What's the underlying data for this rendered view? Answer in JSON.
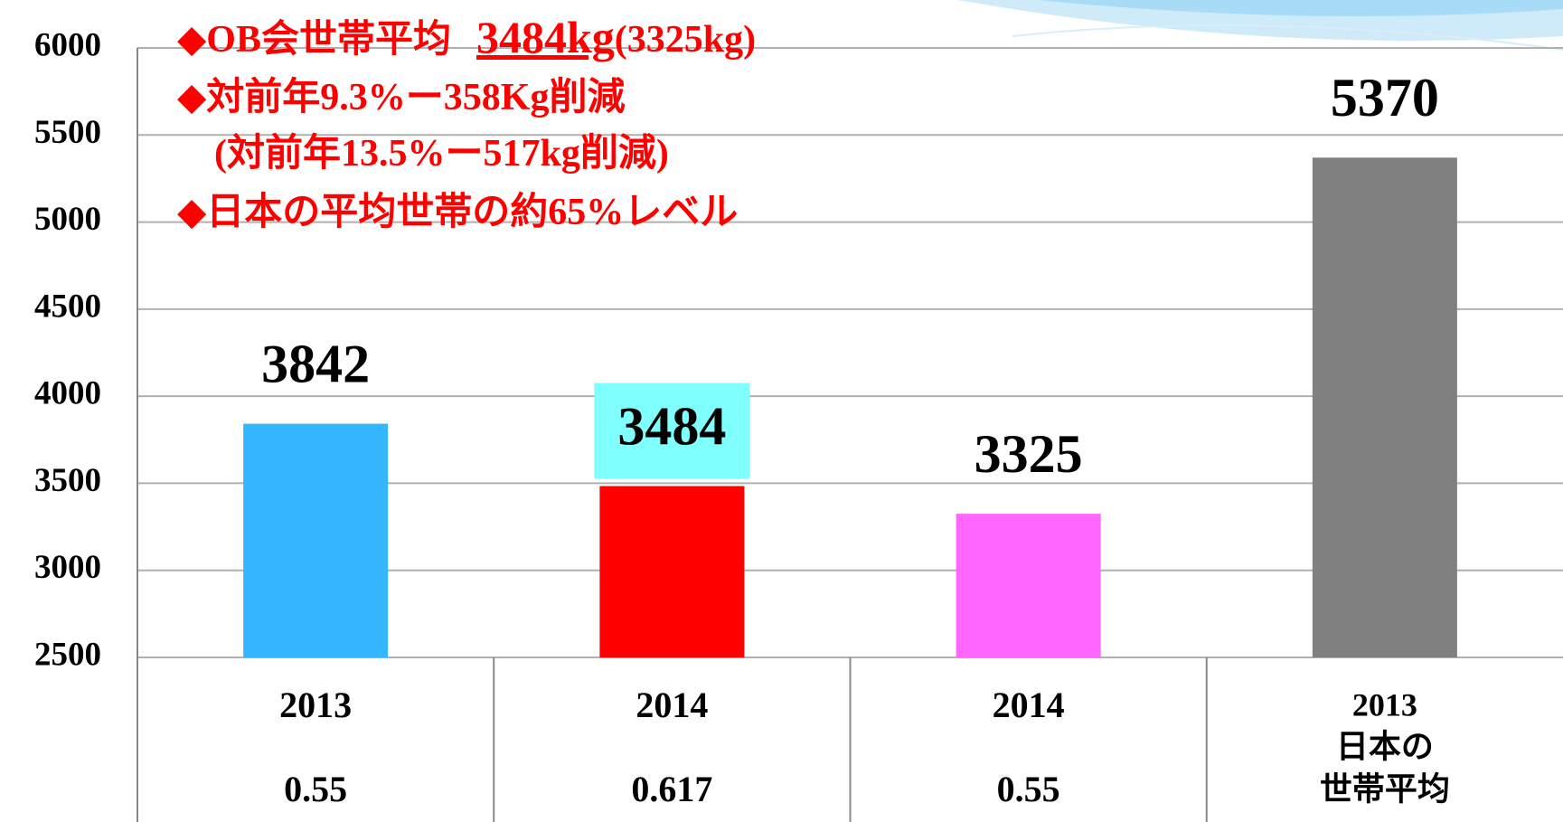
{
  "chart_data": {
    "type": "bar",
    "annotations": [
      [
        "◆OB会世帯平均",
        "3484kg",
        "(3325kg)"
      ],
      [
        "◆対前年9.3%ー358Kg削減"
      ],
      [
        "(対前年13.5%ー517kg削減)"
      ],
      [
        "◆日本の平均世帯の約65%レベル"
      ]
    ],
    "annotation_color": "#ff0000",
    "categories": [
      [
        "2013",
        "0.55"
      ],
      [
        "2014",
        "0.617"
      ],
      [
        "2014",
        "0.55"
      ],
      [
        "2013",
        "日本の",
        "世帯平均"
      ]
    ],
    "values": [
      3842,
      3484,
      3325,
      5370
    ],
    "colors": [
      "#33b5ff",
      "#ff0000",
      "#ff66ff",
      "#808080"
    ],
    "value_label_backgrounds": [
      null,
      "#80ffff",
      null,
      null
    ],
    "ylim": [
      2500,
      6000
    ],
    "yticks": [
      2500,
      3000,
      3500,
      4000,
      4500,
      5000,
      5500,
      6000
    ],
    "grid": true
  }
}
